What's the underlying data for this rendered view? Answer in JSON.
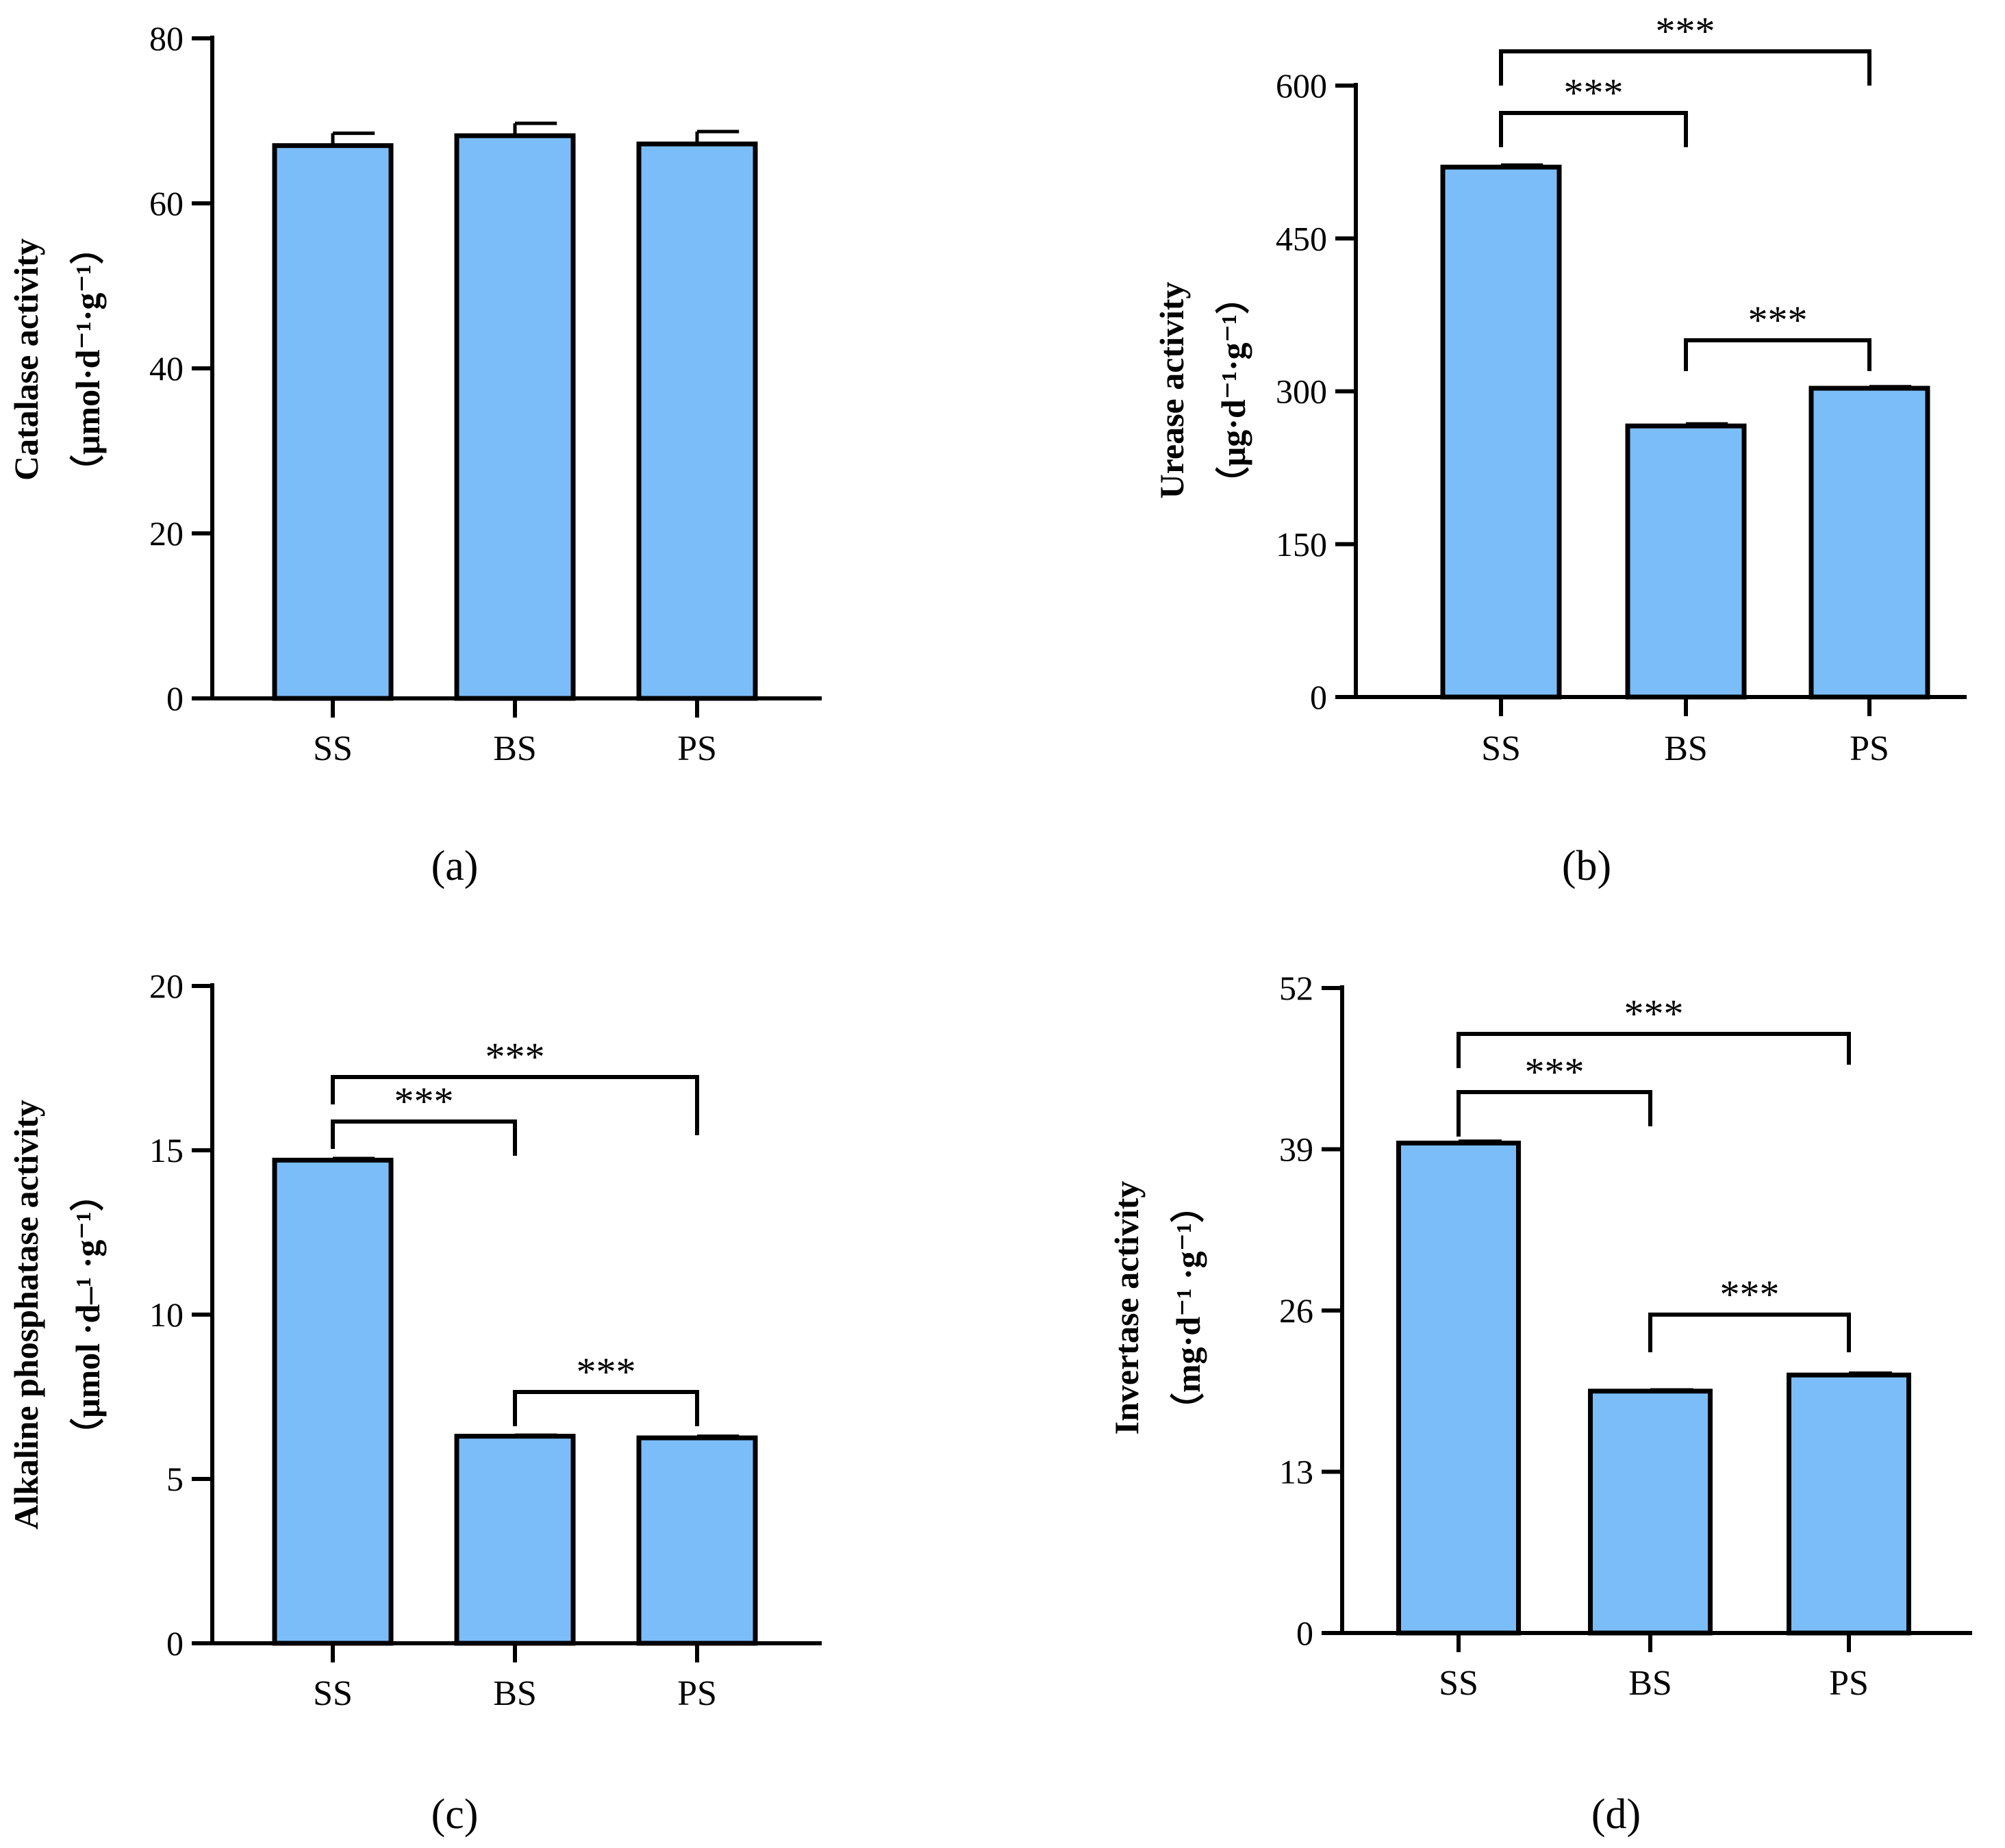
{
  "chart_data": [
    {
      "type": "bar",
      "panel": "a",
      "panel_label": "(a)",
      "ylabel_line1": "Catalase activity",
      "ylabel_line2": "（μmol·d⁻¹·g⁻¹）",
      "categories": [
        "SS",
        "BS",
        "PS"
      ],
      "values": [
        67,
        68.2,
        67.2
      ],
      "errors": [
        1.5,
        1.5,
        1.5
      ],
      "ylim": [
        0,
        80
      ],
      "yticks": [
        "0",
        "20",
        "40",
        "60",
        "80"
      ],
      "bar_color": "#7bbdf9",
      "significance": []
    },
    {
      "type": "bar",
      "panel": "b",
      "panel_label": "(b)",
      "ylabel_line1": "Urease activity",
      "ylabel_line2": "（μg·d⁻¹·g⁻¹）",
      "categories": [
        "SS",
        "BS",
        "PS"
      ],
      "values": [
        520,
        266,
        303
      ],
      "errors": [
        2,
        2,
        1.5
      ],
      "ylim": [
        0,
        600
      ],
      "yticks": [
        "0",
        "150",
        "300",
        "450",
        "600"
      ],
      "bar_color": "#7bbdf9",
      "significance": [
        {
          "from": 0,
          "to": 1,
          "label": "***"
        },
        {
          "from": 0,
          "to": 2,
          "label": "***"
        },
        {
          "from": 1,
          "to": 2,
          "label": "***"
        }
      ]
    },
    {
      "type": "bar",
      "panel": "c",
      "panel_label": "(c)",
      "ylabel_line1": "Alkaline phosphatase activity",
      "ylabel_line2": "（μmol ·d–¹ ·g⁻¹）",
      "categories": [
        "SS",
        "BS",
        "PS"
      ],
      "values": [
        14.7,
        6.3,
        6.25
      ],
      "errors": [
        0.05,
        0.03,
        0.05
      ],
      "ylim": [
        0,
        20
      ],
      "yticks": [
        "0",
        "5",
        "10",
        "15",
        "20"
      ],
      "bar_color": "#7bbdf9",
      "significance": [
        {
          "from": 0,
          "to": 1,
          "label": "***"
        },
        {
          "from": 0,
          "to": 2,
          "label": "***"
        },
        {
          "from": 1,
          "to": 2,
          "label": "***"
        }
      ]
    },
    {
      "type": "bar",
      "panel": "d",
      "panel_label": "(d)",
      "ylabel_line1": "Invertase activity",
      "ylabel_line2": "（mg·d⁻¹ ·g⁻¹）",
      "categories": [
        "SS",
        "BS",
        "PS"
      ],
      "values": [
        39.5,
        19.5,
        20.8
      ],
      "errors": [
        0.15,
        0.1,
        0.15
      ],
      "ylim": [
        0,
        52
      ],
      "yticks": [
        "0",
        "13",
        "26",
        "39",
        "52"
      ],
      "bar_color": "#7bbdf9",
      "significance": [
        {
          "from": 0,
          "to": 1,
          "label": "***"
        },
        {
          "from": 0,
          "to": 2,
          "label": "***"
        },
        {
          "from": 1,
          "to": 2,
          "label": "***"
        }
      ]
    }
  ]
}
